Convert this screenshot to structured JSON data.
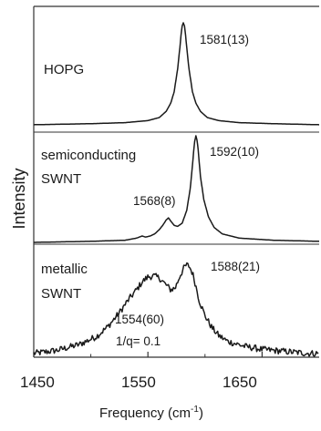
{
  "chart_data": {
    "type": "line",
    "xlabel": "Frequency (cm",
    "xlabel_sup": "-1",
    "xlabel_end": ")",
    "ylabel": "Intensity",
    "xlim": [
      1450,
      1700
    ],
    "x_ticks": [
      "1450",
      "1550",
      "1650"
    ],
    "x_tick_values": [
      1450,
      1550,
      1650
    ],
    "grid": false,
    "line_color": "#1a1a1a",
    "panels": [
      {
        "label_lines": [
          "HOPG"
        ],
        "annotations": [
          "1581(13)"
        ],
        "series": [
          {
            "x": [
              1450,
              1500,
              1530,
              1550,
              1560,
              1566,
              1570,
              1573,
              1576,
              1578,
              1579,
              1580,
              1581,
              1582,
              1583,
              1584,
              1586,
              1589,
              1592,
              1596,
              1602,
              1612,
              1630,
              1660,
              1700
            ],
            "y": [
              0.01,
              0.02,
              0.03,
              0.05,
              0.08,
              0.14,
              0.22,
              0.33,
              0.55,
              0.76,
              0.88,
              0.97,
              1.0,
              0.97,
              0.88,
              0.76,
              0.55,
              0.33,
              0.22,
              0.14,
              0.08,
              0.05,
              0.03,
              0.02,
              0.01
            ]
          }
        ]
      },
      {
        "label_lines": [
          "semiconducting",
          "SWNT"
        ],
        "annotations": [
          "1592(10)",
          "1568(8)"
        ],
        "series": [
          {
            "x": [
              1450,
              1500,
              1530,
              1540,
              1545,
              1548,
              1552,
              1556,
              1560,
              1563,
              1566,
              1568,
              1570,
              1573,
              1576,
              1580,
              1584,
              1587,
              1589,
              1590,
              1591,
              1592,
              1593,
              1594,
              1596,
              1599,
              1603,
              1608,
              1615,
              1630,
              1660,
              1700
            ],
            "y": [
              0.0,
              0.01,
              0.02,
              0.04,
              0.06,
              0.05,
              0.06,
              0.08,
              0.12,
              0.16,
              0.21,
              0.23,
              0.2,
              0.16,
              0.15,
              0.18,
              0.3,
              0.5,
              0.72,
              0.85,
              0.95,
              1.0,
              0.96,
              0.87,
              0.62,
              0.4,
              0.24,
              0.14,
              0.08,
              0.04,
              0.02,
              0.01
            ]
          }
        ]
      },
      {
        "label_lines": [
          "metallic",
          "SWNT"
        ],
        "annotations": [
          "1588(21)",
          "1554(60)",
          "1/q=  0.1"
        ],
        "series": [
          {
            "x": [
              1450,
              1470,
              1490,
              1505,
              1515,
              1525,
              1533,
              1540,
              1545,
              1550,
              1555,
              1560,
              1565,
              1570,
              1574,
              1578,
              1582,
              1584,
              1586,
              1589,
              1592,
              1595,
              1600,
              1606,
              1612,
              1620,
              1635,
              1650,
              1670,
              1690,
              1700
            ],
            "y": [
              0.02,
              0.05,
              0.11,
              0.19,
              0.29,
              0.43,
              0.56,
              0.66,
              0.74,
              0.79,
              0.8,
              0.78,
              0.72,
              0.66,
              0.68,
              0.8,
              0.89,
              0.91,
              0.9,
              0.83,
              0.7,
              0.55,
              0.4,
              0.28,
              0.2,
              0.14,
              0.09,
              0.06,
              0.04,
              0.02,
              0.02
            ]
          }
        ]
      }
    ]
  }
}
